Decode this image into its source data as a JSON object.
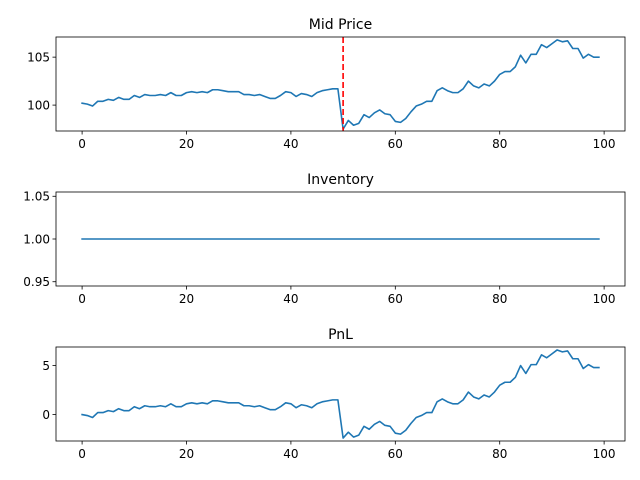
{
  "colors": {
    "series": "#1f77b4",
    "marker": "#ff0000"
  },
  "chart_data": [
    {
      "type": "line",
      "title": "Mid Price",
      "xlim": [
        -5,
        104
      ],
      "ylim": [
        97.3,
        107.1
      ],
      "xticks": [
        0,
        20,
        40,
        60,
        80,
        100
      ],
      "yticks": [
        100,
        105
      ],
      "xtick_labels": [
        "0",
        "20",
        "40",
        "60",
        "80",
        "100"
      ],
      "ytick_labels": [
        "100",
        "105"
      ],
      "vline": {
        "x": 50,
        "style": "dashed",
        "color": "#ff0000"
      },
      "series": [
        {
          "x": [
            0,
            1,
            2,
            3,
            4,
            5,
            6,
            7,
            8,
            9,
            10,
            11,
            12,
            13,
            14,
            15,
            16,
            17,
            18,
            19,
            20,
            21,
            22,
            23,
            24,
            25,
            26,
            27,
            28,
            29,
            30,
            31,
            32,
            33,
            34,
            35,
            36,
            37,
            38,
            39,
            40,
            41,
            42,
            43,
            44,
            45,
            46,
            47,
            48,
            49,
            50,
            51,
            52,
            53,
            54,
            55,
            56,
            57,
            58,
            59,
            60,
            61,
            62,
            63,
            64,
            65,
            66,
            67,
            68,
            69,
            70,
            71,
            72,
            73,
            74,
            75,
            76,
            77,
            78,
            79,
            80,
            81,
            82,
            83,
            84,
            85,
            86,
            87,
            88,
            89,
            90,
            91,
            92,
            93,
            94,
            95,
            96,
            97,
            98,
            99
          ],
          "y": [
            100.2,
            100.1,
            99.9,
            100.4,
            100.4,
            100.6,
            100.5,
            100.8,
            100.6,
            100.6,
            101.0,
            100.8,
            101.1,
            101.0,
            101.0,
            101.1,
            101.0,
            101.3,
            101.0,
            101.0,
            101.3,
            101.4,
            101.3,
            101.4,
            101.3,
            101.6,
            101.6,
            101.5,
            101.4,
            101.4,
            101.4,
            101.1,
            101.1,
            101.0,
            101.1,
            100.9,
            100.7,
            100.7,
            101.0,
            101.4,
            101.3,
            100.9,
            101.2,
            101.1,
            100.9,
            101.3,
            101.5,
            101.6,
            101.7,
            101.7,
            97.5,
            98.4,
            97.9,
            98.1,
            99.0,
            98.7,
            99.2,
            99.5,
            99.1,
            99.0,
            98.3,
            98.2,
            98.6,
            99.3,
            99.9,
            100.1,
            100.4,
            100.4,
            101.5,
            101.8,
            101.5,
            101.3,
            101.3,
            101.7,
            102.5,
            102.0,
            101.8,
            102.2,
            102.0,
            102.5,
            103.2,
            103.5,
            103.5,
            104.0,
            105.2,
            104.4,
            105.3,
            105.3,
            106.3,
            106.0,
            106.4,
            106.8,
            106.6,
            106.7,
            105.9,
            105.9,
            104.9,
            105.3,
            105.0,
            105.0
          ]
        }
      ]
    },
    {
      "type": "line",
      "title": "Inventory",
      "xlim": [
        -5,
        104
      ],
      "ylim": [
        0.945,
        1.055
      ],
      "xticks": [
        0,
        20,
        40,
        60,
        80,
        100
      ],
      "yticks": [
        0.95,
        1.0,
        1.05
      ],
      "xtick_labels": [
        "0",
        "20",
        "40",
        "60",
        "80",
        "100"
      ],
      "ytick_labels": [
        "0.95",
        "1.00",
        "1.05"
      ],
      "series": [
        {
          "x": [
            0,
            99
          ],
          "y": [
            1.0,
            1.0
          ]
        }
      ]
    },
    {
      "type": "line",
      "title": "PnL",
      "xlim": [
        -5,
        104
      ],
      "ylim": [
        -2.7,
        6.9
      ],
      "xticks": [
        0,
        20,
        40,
        60,
        80,
        100
      ],
      "yticks": [
        0,
        5
      ],
      "xtick_labels": [
        "0",
        "20",
        "40",
        "60",
        "80",
        "100"
      ],
      "ytick_labels": [
        "0",
        "5"
      ],
      "series": [
        {
          "x": [
            0,
            1,
            2,
            3,
            4,
            5,
            6,
            7,
            8,
            9,
            10,
            11,
            12,
            13,
            14,
            15,
            16,
            17,
            18,
            19,
            20,
            21,
            22,
            23,
            24,
            25,
            26,
            27,
            28,
            29,
            30,
            31,
            32,
            33,
            34,
            35,
            36,
            37,
            38,
            39,
            40,
            41,
            42,
            43,
            44,
            45,
            46,
            47,
            48,
            49,
            50,
            51,
            52,
            53,
            54,
            55,
            56,
            57,
            58,
            59,
            60,
            61,
            62,
            63,
            64,
            65,
            66,
            67,
            68,
            69,
            70,
            71,
            72,
            73,
            74,
            75,
            76,
            77,
            78,
            79,
            80,
            81,
            82,
            83,
            84,
            85,
            86,
            87,
            88,
            89,
            90,
            91,
            92,
            93,
            94,
            95,
            96,
            97,
            98,
            99
          ],
          "y": [
            0.0,
            -0.1,
            -0.3,
            0.2,
            0.2,
            0.4,
            0.3,
            0.6,
            0.4,
            0.4,
            0.8,
            0.6,
            0.9,
            0.8,
            0.8,
            0.9,
            0.8,
            1.1,
            0.8,
            0.8,
            1.1,
            1.2,
            1.1,
            1.2,
            1.1,
            1.4,
            1.4,
            1.3,
            1.2,
            1.2,
            1.2,
            0.9,
            0.9,
            0.8,
            0.9,
            0.7,
            0.5,
            0.5,
            0.8,
            1.2,
            1.1,
            0.7,
            1.0,
            0.9,
            0.7,
            1.1,
            1.3,
            1.4,
            1.5,
            1.5,
            -2.4,
            -1.8,
            -2.3,
            -2.1,
            -1.2,
            -1.5,
            -1.0,
            -0.7,
            -1.1,
            -1.2,
            -1.9,
            -2.0,
            -1.6,
            -0.9,
            -0.3,
            -0.1,
            0.2,
            0.2,
            1.3,
            1.6,
            1.3,
            1.1,
            1.1,
            1.5,
            2.3,
            1.8,
            1.6,
            2.0,
            1.8,
            2.3,
            3.0,
            3.3,
            3.3,
            3.8,
            5.0,
            4.2,
            5.1,
            5.1,
            6.1,
            5.8,
            6.2,
            6.6,
            6.4,
            6.5,
            5.7,
            5.7,
            4.7,
            5.1,
            4.8,
            4.8
          ]
        }
      ]
    }
  ]
}
